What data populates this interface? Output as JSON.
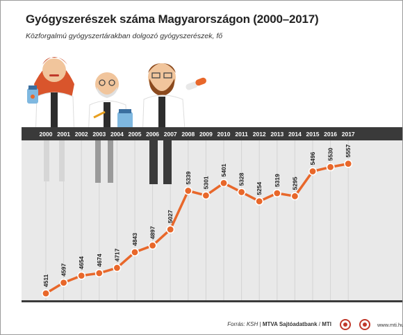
{
  "header": {
    "title": "Gyógyszerészek száma Magyarországon (2000–2017)",
    "subtitle": "Közforgalmú gyógyszertárakban dolgozó gyógyszerészek, fő"
  },
  "chart_data": {
    "type": "line",
    "title": "Gyógyszerészek száma Magyarországon (2000–2017)",
    "subtitle": "Közforgalmú gyógyszertárakban dolgozó gyógyszerészek, fő",
    "categories": [
      "2000",
      "2001",
      "2002",
      "2003",
      "2004",
      "2005",
      "2006",
      "2007",
      "2008",
      "2009",
      "2010",
      "2011",
      "2012",
      "2013",
      "2014",
      "2015",
      "2016",
      "2017"
    ],
    "values": [
      4511,
      4597,
      4654,
      4674,
      4717,
      4843,
      4897,
      5027,
      5339,
      5301,
      5401,
      5328,
      5254,
      5319,
      5295,
      5496,
      5530,
      5557
    ],
    "ylim": [
      4450,
      5650
    ],
    "grid": true,
    "legend": "none"
  },
  "colors": {
    "line": "#e8672a",
    "year_band": "#3a3a3a",
    "grid": "#d4d4d4",
    "plot_bg": "#e9e9e9"
  },
  "footer": {
    "source_prefix": "Forrás: KSH",
    "source_agency": "MTVA Sajtóadatbank",
    "source_mti": "MTI",
    "site": "www.mti.hu",
    "logo_icons": [
      "mtva-logo-icon",
      "mti-logo-icon"
    ]
  },
  "illustration": {
    "figures": [
      "woman-pharmacist-icon",
      "old-pharmacist-icon",
      "bearded-pharmacist-icon"
    ]
  }
}
